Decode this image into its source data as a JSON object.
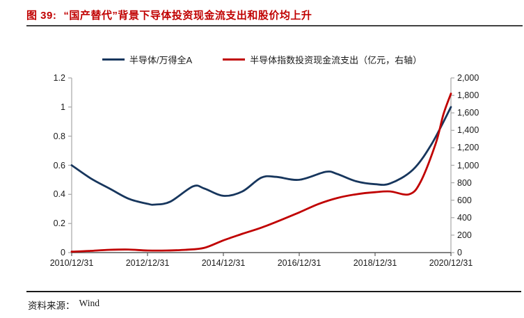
{
  "figure": {
    "label": "图 39:",
    "title": "“国产替代”背景下导体投资现金流支出和股价均上升"
  },
  "legend": [
    {
      "name": "半导体/万得全A",
      "color": "#17365d"
    },
    {
      "name": "半导体指数投资现金流支出（亿元，右轴）",
      "color": "#c00000"
    }
  ],
  "source": {
    "label": "资料来源：",
    "value": "Wind"
  },
  "colors": {
    "title_red": "#c00000",
    "series_blue": "#17365d",
    "series_red": "#c00000",
    "axis_gray": "#a6a6a6",
    "bottom_axis_gray": "#595959"
  },
  "chart_data": {
    "type": "line",
    "title": "",
    "xlabel": "",
    "ylabel_left": "",
    "ylabel_right": "亿元",
    "grid": false,
    "legend_position": "top-center",
    "x_axis": {
      "range_years": [
        0,
        10
      ],
      "tick_positions_years": [
        0,
        2,
        4,
        6,
        8,
        10
      ],
      "tick_labels": [
        "2010/12/31",
        "2012/12/31",
        "2014/12/31",
        "2016/12/31",
        "2018/12/31",
        "2020/12/31"
      ]
    },
    "left_axis": {
      "min": 0,
      "max": 1.2,
      "tick_values": [
        0,
        0.2,
        0.4,
        0.6,
        0.8,
        1,
        1.2
      ],
      "tick_labels": [
        "0",
        "0.2",
        "0.4",
        "0.6",
        "0.8",
        "1",
        "1.2"
      ]
    },
    "right_axis": {
      "min": 0,
      "max": 2000,
      "tick_values": [
        0,
        200,
        400,
        600,
        800,
        1000,
        1200,
        1400,
        1600,
        1800,
        2000
      ],
      "tick_labels": [
        "0",
        "200",
        "400",
        "600",
        "800",
        "1,000",
        "1,200",
        "1,400",
        "1,600",
        "1,800",
        "2,000"
      ]
    },
    "series": [
      {
        "name": "半导体/万得全A",
        "axis": "left",
        "color": "#17365d",
        "points": [
          [
            0,
            0.6
          ],
          [
            0.5,
            0.51
          ],
          [
            1,
            0.44
          ],
          [
            1.5,
            0.37
          ],
          [
            2,
            0.335
          ],
          [
            2.2,
            0.33
          ],
          [
            2.6,
            0.35
          ],
          [
            3.2,
            0.455
          ],
          [
            3.5,
            0.44
          ],
          [
            4,
            0.39
          ],
          [
            4.5,
            0.42
          ],
          [
            5,
            0.515
          ],
          [
            5.4,
            0.52
          ],
          [
            6,
            0.5
          ],
          [
            6.7,
            0.555
          ],
          [
            7,
            0.54
          ],
          [
            7.5,
            0.49
          ],
          [
            8,
            0.47
          ],
          [
            8.4,
            0.475
          ],
          [
            9,
            0.57
          ],
          [
            9.5,
            0.75
          ],
          [
            10,
            1.0
          ]
        ]
      },
      {
        "name": "半导体指数投资现金流支出（亿元，右轴）",
        "axis": "right",
        "color": "#c00000",
        "points": [
          [
            0,
            10
          ],
          [
            0.5,
            20
          ],
          [
            1,
            32
          ],
          [
            1.5,
            35
          ],
          [
            2,
            24
          ],
          [
            2.5,
            24
          ],
          [
            3,
            32
          ],
          [
            3.5,
            55
          ],
          [
            4,
            140
          ],
          [
            4.5,
            215
          ],
          [
            5,
            285
          ],
          [
            5.5,
            370
          ],
          [
            6,
            460
          ],
          [
            6.5,
            555
          ],
          [
            7,
            625
          ],
          [
            7.5,
            668
          ],
          [
            8,
            692
          ],
          [
            8.4,
            700
          ],
          [
            8.9,
            668
          ],
          [
            9.2,
            810
          ],
          [
            9.6,
            1250
          ],
          [
            9.8,
            1580
          ],
          [
            10,
            1820
          ]
        ]
      }
    ]
  }
}
